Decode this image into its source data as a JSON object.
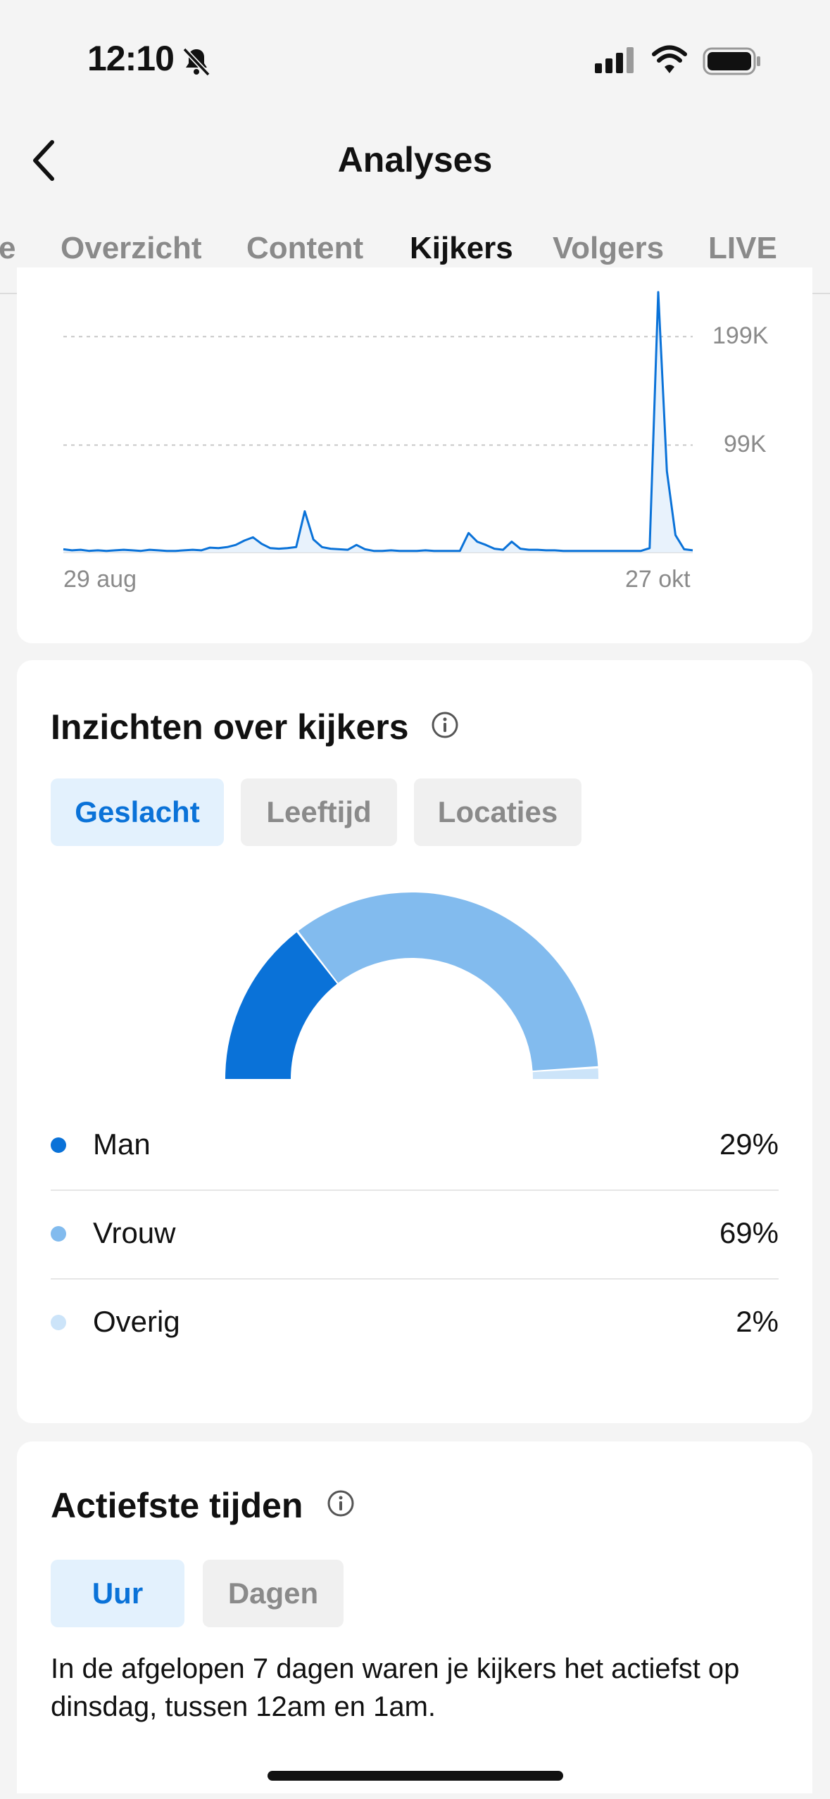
{
  "status_bar": {
    "time": "12:10"
  },
  "header": {
    "title": "Analyses"
  },
  "tabs": [
    {
      "label": "e",
      "active": false
    },
    {
      "label": "Overzicht",
      "active": false
    },
    {
      "label": "Content",
      "active": false
    },
    {
      "label": "Kijkers",
      "active": true
    },
    {
      "label": "Volgers",
      "active": false
    },
    {
      "label": "LIVE",
      "active": false
    }
  ],
  "chart_data": {
    "type": "line",
    "x_start": "29 aug",
    "x_end": "27 okt",
    "x_tick_labels": [
      "29 aug",
      "27 okt"
    ],
    "y_tick_labels": [
      "199K",
      "99K"
    ],
    "y_ticks": [
      199000,
      99000
    ],
    "ylim": [
      0,
      240000
    ],
    "grid": true,
    "color": "#0a72d8",
    "values": [
      3000,
      2000,
      2500,
      1500,
      2000,
      1500,
      2000,
      2500,
      2000,
      1500,
      2500,
      2000,
      1500,
      1500,
      2000,
      2500,
      2000,
      4500,
      4000,
      5000,
      7000,
      11000,
      14000,
      8000,
      4000,
      3500,
      4000,
      5000,
      38000,
      12000,
      5000,
      3500,
      3000,
      2500,
      7000,
      3000,
      1500,
      1500,
      2000,
      1500,
      1500,
      1500,
      2000,
      1500,
      1500,
      1500,
      1500,
      18000,
      10000,
      7000,
      3500,
      2500,
      10000,
      3500,
      2500,
      2500,
      2000,
      2000,
      1500,
      1500,
      1500,
      1500,
      1500,
      1500,
      1500,
      1500,
      1500,
      1500,
      4000,
      240000,
      75000,
      16000,
      3000,
      2000
    ]
  },
  "insights": {
    "title": "Inzichten over kijkers",
    "filters": [
      {
        "label": "Geslacht",
        "active": true
      },
      {
        "label": "Leeftijd",
        "active": false
      },
      {
        "label": "Locaties",
        "active": false
      }
    ],
    "gender": [
      {
        "label": "Man",
        "value": "29%",
        "fraction": 0.29,
        "color": "#0a72d8"
      },
      {
        "label": "Vrouw",
        "value": "69%",
        "fraction": 0.69,
        "color": "#82bbee"
      },
      {
        "label": "Overig",
        "value": "2%",
        "fraction": 0.02,
        "color": "#cce4f9"
      }
    ]
  },
  "active_times": {
    "title": "Actiefste tijden",
    "filters": [
      {
        "label": "Uur",
        "active": true
      },
      {
        "label": "Dagen",
        "active": false
      }
    ],
    "description": "In de afgelopen 7 dagen waren je kijkers het actiefst op dinsdag, tussen 12am en 1am."
  }
}
